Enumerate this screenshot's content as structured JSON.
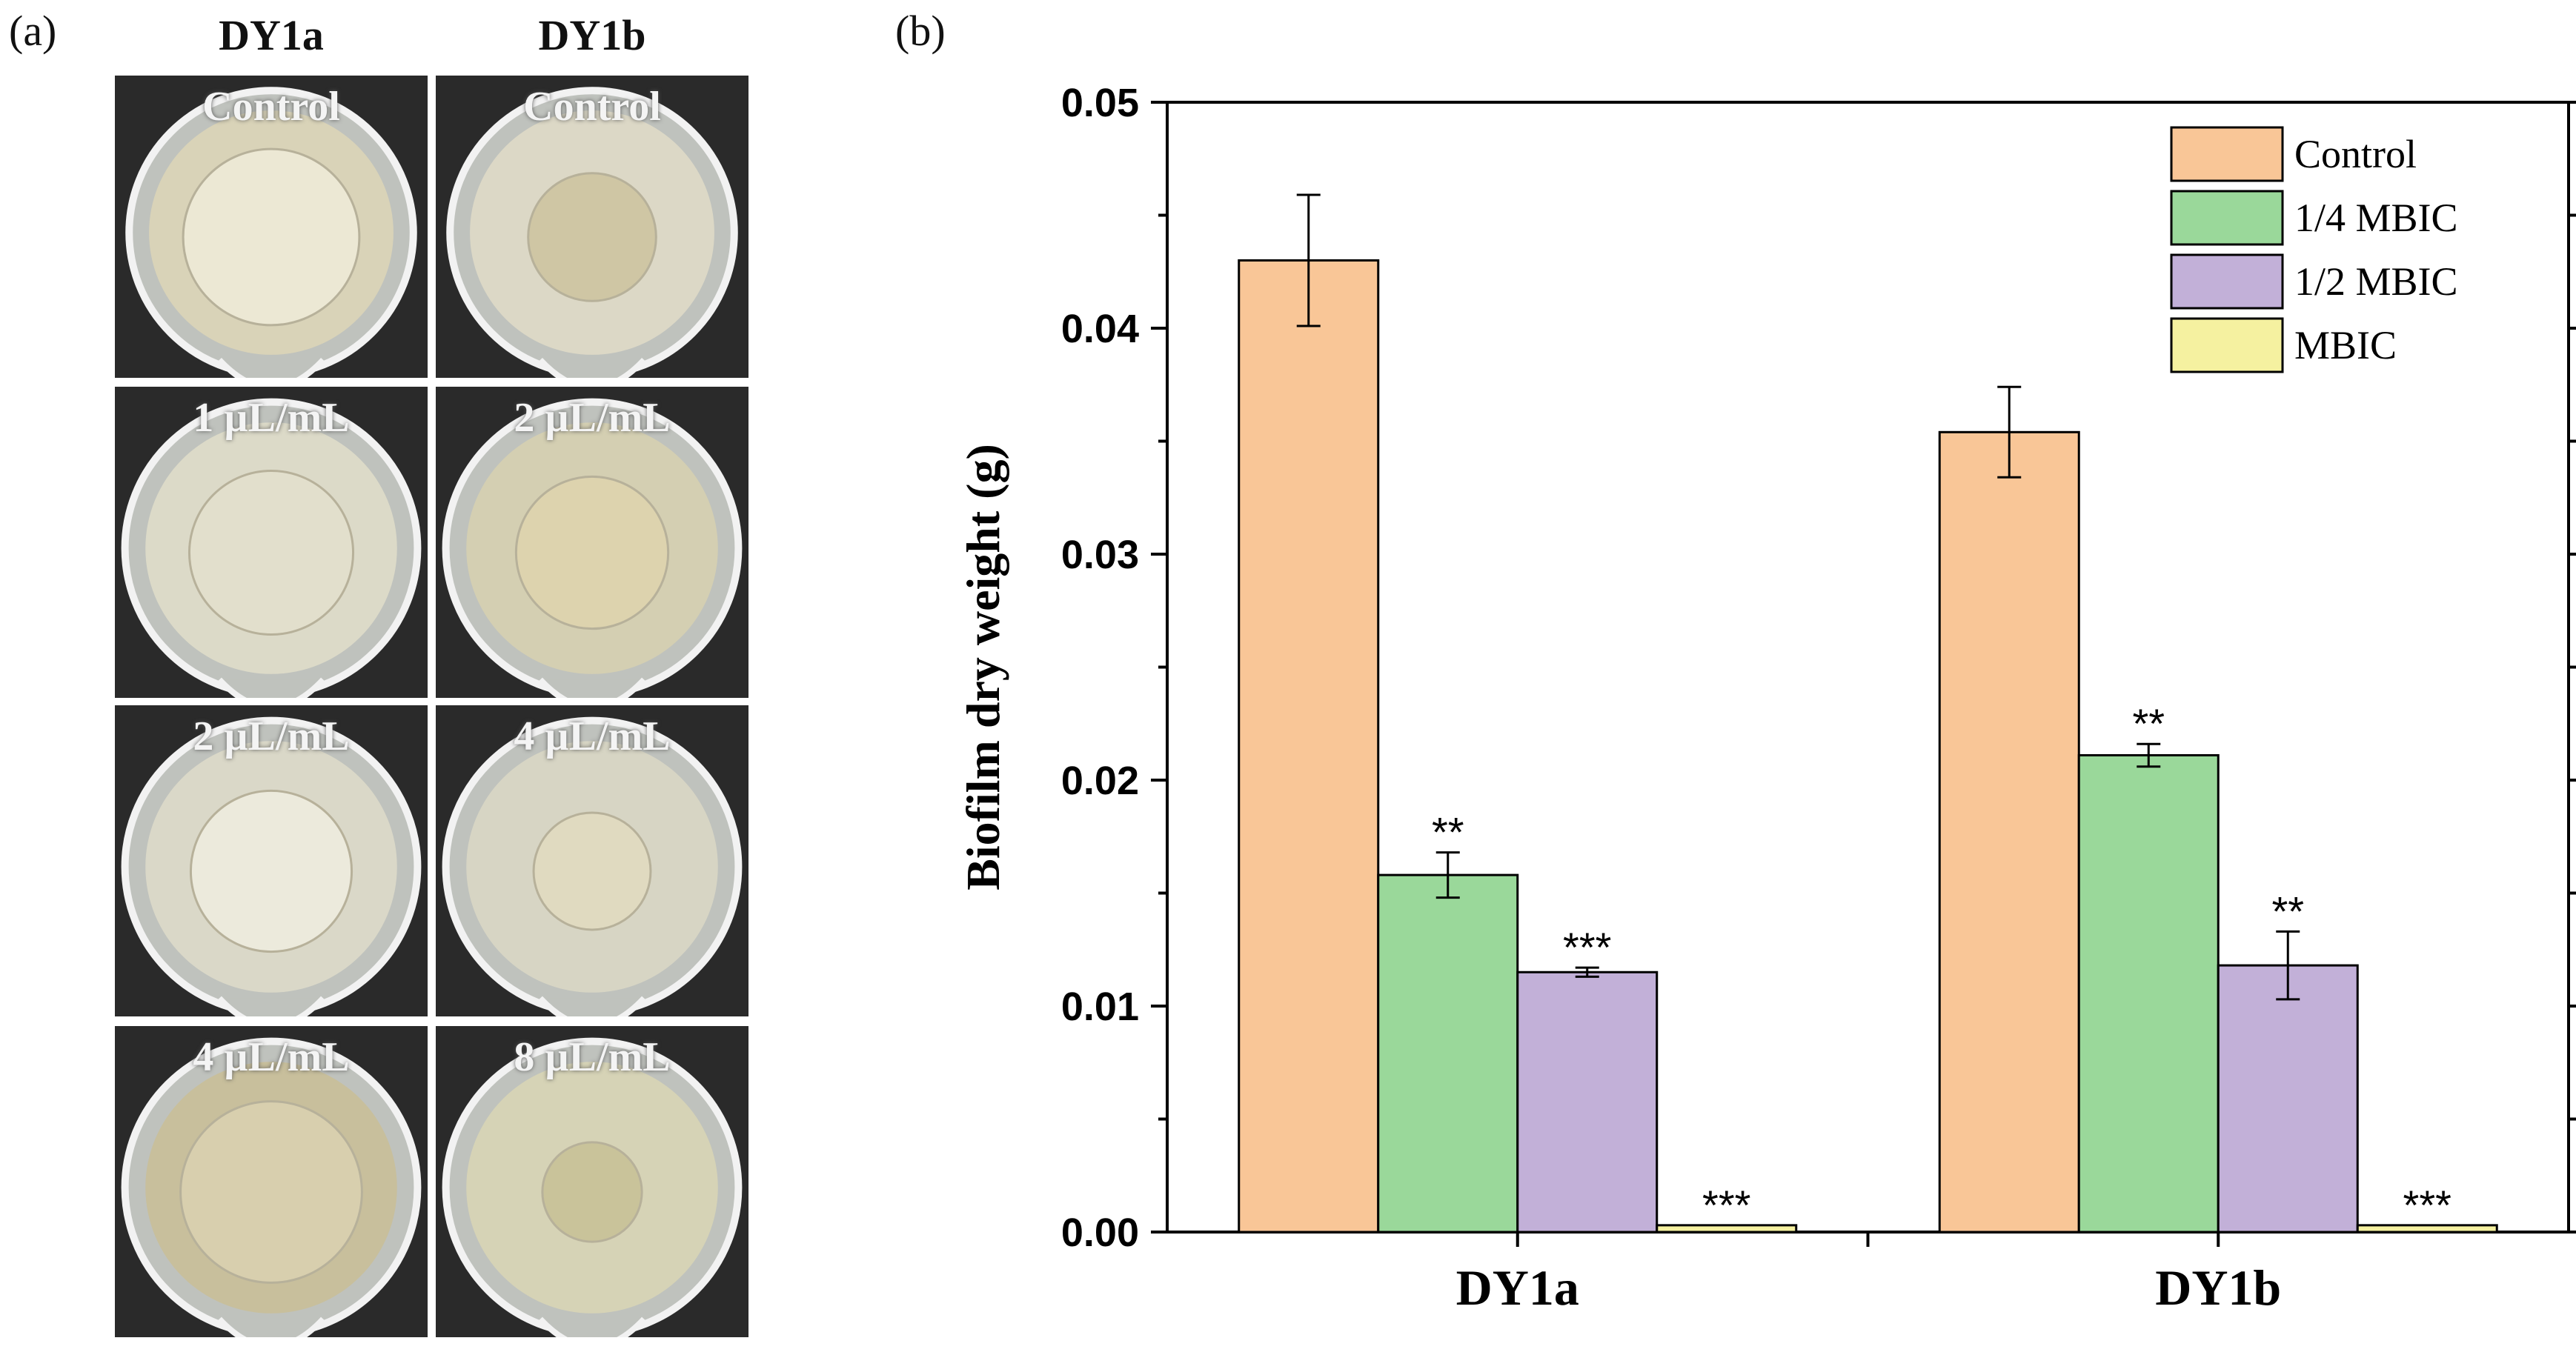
{
  "panel_a": {
    "label": "(a)",
    "columns": [
      "DY1a",
      "DY1b"
    ],
    "photos": [
      {
        "strain": "DY1a",
        "caption": "Control",
        "tone": "#d9d3b8",
        "film": "#ece8d4",
        "film_size": 0.62
      },
      {
        "strain": "DY1b",
        "caption": "Control",
        "tone": "#dcd8c6",
        "film": "#cfc6a4",
        "film_size": 0.45
      },
      {
        "strain": "DY1a",
        "caption": "1 µL/mL",
        "tone": "#dcdac8",
        "film": "#e2dfcc",
        "film_size": 0.56
      },
      {
        "strain": "DY1b",
        "caption": "2 µL/mL",
        "tone": "#d4cfb2",
        "film": "#ddd3ae",
        "film_size": 0.52
      },
      {
        "strain": "DY1a",
        "caption": "2 µL/mL",
        "tone": "#dad8c8",
        "film": "#eceadc",
        "film_size": 0.55
      },
      {
        "strain": "DY1b",
        "caption": "4 µL/mL",
        "tone": "#d7d5c4",
        "film": "#e0dac0",
        "film_size": 0.4
      },
      {
        "strain": "DY1a",
        "caption": "4 µL/mL",
        "tone": "#c8bf9c",
        "film": "#d8cfae",
        "film_size": 0.62
      },
      {
        "strain": "DY1b",
        "caption": "8 µL/mL",
        "tone": "#d6d3b6",
        "film": "#c9c39a",
        "film_size": 0.34
      }
    ]
  },
  "chart_data": {
    "panel_label": "(b)",
    "type": "bar",
    "title": "",
    "xlabel": "",
    "ylabel": "Biofilm dry weight (g)",
    "ylim": [
      0,
      0.05
    ],
    "yticks": [
      "0.00",
      "0.01",
      "0.02",
      "0.03",
      "0.04",
      "0.05"
    ],
    "categories": [
      "DY1a",
      "DY1b"
    ],
    "legend_position": "top-right",
    "grid": false,
    "series": [
      {
        "name": "Control",
        "color": "#f9c697",
        "values": [
          0.043,
          0.0354
        ],
        "errors": [
          0.0029,
          0.002
        ],
        "sig": [
          "",
          ""
        ]
      },
      {
        "name": "1/4 MBIC",
        "color": "#9ad89a",
        "values": [
          0.0158,
          0.0211
        ],
        "errors": [
          0.001,
          0.0005
        ],
        "sig": [
          "**",
          "**"
        ]
      },
      {
        "name": "1/2 MBIC",
        "color": "#c2b0d8",
        "values": [
          0.0115,
          0.0118
        ],
        "errors": [
          0.0002,
          0.0015
        ],
        "sig": [
          "***",
          "**"
        ]
      },
      {
        "name": "MBIC",
        "color": "#f5f1a0",
        "values": [
          0.0003,
          0.0003
        ],
        "errors": [
          0,
          0
        ],
        "sig": [
          "***",
          "***"
        ]
      }
    ]
  }
}
